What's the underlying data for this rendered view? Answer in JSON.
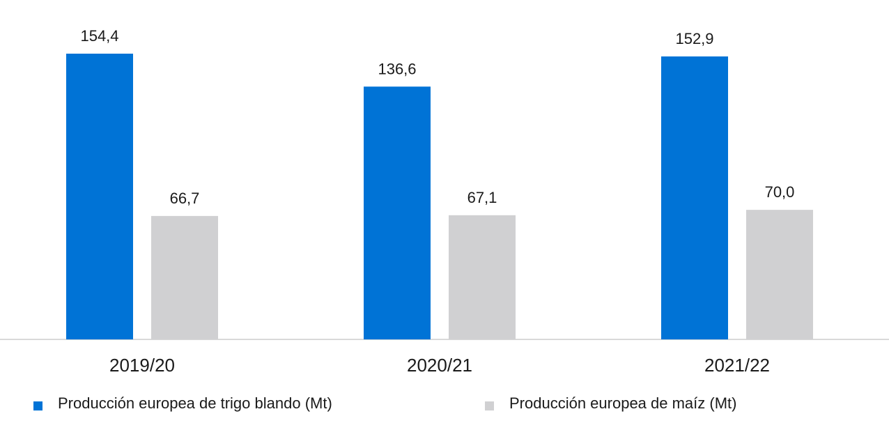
{
  "chart_data": {
    "type": "bar",
    "categories": [
      "2019/20",
      "2020/21",
      "2021/22"
    ],
    "series": [
      {
        "name": "Producción europea de trigo blando (Mt)",
        "values": [
          154.4,
          136.6,
          152.9
        ],
        "labels": [
          "154,4",
          "136,6",
          "152,9"
        ],
        "color": "#0073D6"
      },
      {
        "name": "Producción europea de maíz (Mt)",
        "values": [
          66.7,
          67.1,
          70.0
        ],
        "labels": [
          "66,7",
          "67,1",
          "70,0"
        ],
        "color": "#D0D0D2"
      }
    ],
    "ylim": [
      0,
      160
    ],
    "grid": false,
    "legend_position": "bottom"
  }
}
